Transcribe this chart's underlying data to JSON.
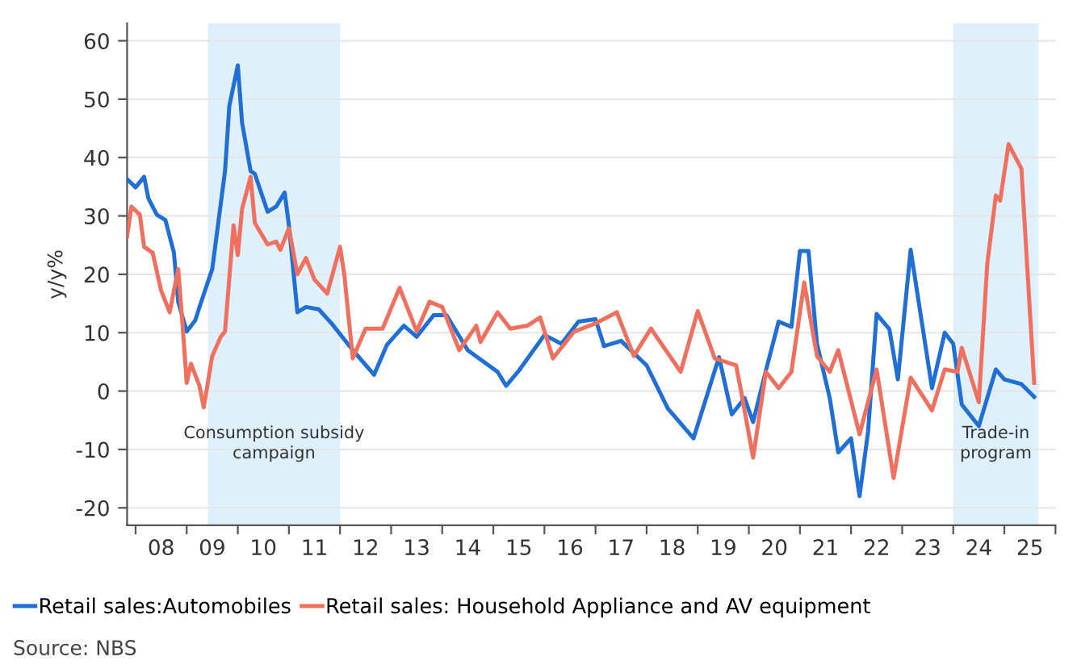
{
  "chart_data": {
    "type": "line",
    "ylabel": "y/y%",
    "xlim": [
      "2007-11",
      "2026-01"
    ],
    "ylim": [
      -23,
      63
    ],
    "yticks": [
      -20,
      -10,
      0,
      10,
      20,
      30,
      40,
      50,
      60
    ],
    "xticks": [
      {
        "value": "2008",
        "label": null
      },
      {
        "value": "2009",
        "label": null
      },
      {
        "value": "2010",
        "label": null
      },
      {
        "value": "2011",
        "label": null
      },
      {
        "value": "2012",
        "label": null
      },
      {
        "value": "2013",
        "label": null
      },
      {
        "value": "2014",
        "label": null
      },
      {
        "value": "2015",
        "label": null
      },
      {
        "value": "2016",
        "label": null
      },
      {
        "value": "2017",
        "label": null
      },
      {
        "value": "2018",
        "label": null
      },
      {
        "value": "2019",
        "label": null
      },
      {
        "value": "2020",
        "label": null
      },
      {
        "value": "2021",
        "label": null
      },
      {
        "value": "2022",
        "label": null
      },
      {
        "value": "2023",
        "label": null
      },
      {
        "value": "2024",
        "label": null
      },
      {
        "value": "2025",
        "label": null
      },
      {
        "value": "2026",
        "label": null
      },
      {
        "value": "2008-07",
        "label": "08"
      },
      {
        "value": "2009-07",
        "label": "09"
      },
      {
        "value": "2010-07",
        "label": "10"
      },
      {
        "value": "2011-07",
        "label": "11"
      },
      {
        "value": "2012-07",
        "label": "12"
      },
      {
        "value": "2013-07",
        "label": "13"
      },
      {
        "value": "2014-07",
        "label": "14"
      },
      {
        "value": "2015-07",
        "label": "15"
      },
      {
        "value": "2016-07",
        "label": "16"
      },
      {
        "value": "2017-07",
        "label": "17"
      },
      {
        "value": "2018-07",
        "label": "18"
      },
      {
        "value": "2019-07",
        "label": "19"
      },
      {
        "value": "2020-07",
        "label": "20"
      },
      {
        "value": "2021-07",
        "label": "21"
      },
      {
        "value": "2022-07",
        "label": "22"
      },
      {
        "value": "2023-07",
        "label": "23"
      },
      {
        "value": "2024-07",
        "label": "24"
      },
      {
        "value": "2025-07",
        "label": "25"
      }
    ],
    "grid": "y",
    "legend": "bottom",
    "line_style": "solid",
    "marker": "none",
    "bands": [
      {
        "axis": "x",
        "from": "2009-06",
        "to": "2012-01",
        "label": "Consumption subsidy\ncampaign",
        "color": "#dff0fa"
      },
      {
        "axis": "x",
        "from": "2024-01",
        "to": "2025-09",
        "label": "Trade-in\nprogram",
        "color": "#dff0fa"
      }
    ],
    "series": [
      {
        "name": "Retail sales:Automobiles",
        "color": "#1f6fd6",
        "x": [
          "2007-11",
          "2008-01",
          "2008-03",
          "2008-04",
          "2008-06",
          "2008-08",
          "2008-10",
          "2008-11",
          "2009-01",
          "2009-03",
          "2009-04",
          "2009-07",
          "2009-10",
          "2009-11",
          "2010-01",
          "2010-02",
          "2010-04",
          "2010-05",
          "2010-08",
          "2010-10",
          "2010-12",
          "2011-01",
          "2011-03",
          "2011-05",
          "2011-08",
          "2011-11",
          "2012-04",
          "2012-09",
          "2012-12",
          "2013-04",
          "2013-07",
          "2013-11",
          "2014-02",
          "2014-07",
          "2015-02",
          "2015-04",
          "2015-07",
          "2016-01",
          "2016-05",
          "2016-09",
          "2017-01",
          "2017-03",
          "2017-07",
          "2018-01",
          "2018-06",
          "2018-12",
          "2019-06",
          "2019-09",
          "2019-12",
          "2020-02",
          "2020-05",
          "2020-08",
          "2020-11",
          "2021-01",
          "2021-03",
          "2021-05",
          "2021-08",
          "2021-10",
          "2022-01",
          "2022-03",
          "2022-05",
          "2022-07",
          "2022-10",
          "2022-12",
          "2023-03",
          "2023-06",
          "2023-08",
          "2023-11",
          "2024-01",
          "2024-03",
          "2024-07",
          "2024-11",
          "2025-01",
          "2025-05",
          "2025-08"
        ],
        "values": [
          36.3,
          34.9,
          36.7,
          33,
          30.2,
          29.3,
          23.7,
          15.3,
          10.2,
          12.1,
          14.4,
          20.9,
          37.7,
          48.8,
          55.8,
          46,
          37.7,
          37.2,
          30.7,
          31.6,
          34,
          28.4,
          13.5,
          14.4,
          14,
          11.6,
          7,
          2.8,
          7.9,
          11.2,
          9.3,
          13,
          13,
          7,
          3.3,
          0.9,
          3.5,
          9.6,
          8.1,
          11.9,
          12.3,
          7.7,
          8.6,
          4.4,
          -3,
          -8.1,
          5.8,
          -4,
          -1.2,
          -5.3,
          3.5,
          11.9,
          11,
          24,
          24,
          8.1,
          -1.2,
          -10.5,
          -8.1,
          -18,
          -6.9,
          13.2,
          10.6,
          2,
          24.2,
          10,
          0.5,
          10,
          8.1,
          -2.3,
          -6,
          3.7,
          2,
          1.2,
          -1
        ]
      },
      {
        "name": "Retail sales: Household Appliance and AV equipment",
        "color": "#f07060",
        "x": [
          "2007-11",
          "2007-12",
          "2008-02",
          "2008-03",
          "2008-05",
          "2008-07",
          "2008-09",
          "2008-11",
          "2008-12",
          "2009-01",
          "2009-02",
          "2009-04",
          "2009-05",
          "2009-07",
          "2009-09",
          "2009-10",
          "2009-12",
          "2010-01",
          "2010-02",
          "2010-04",
          "2010-05",
          "2010-08",
          "2010-10",
          "2010-11",
          "2011-01",
          "2011-03",
          "2011-05",
          "2011-07",
          "2011-10",
          "2012-01",
          "2012-02",
          "2012-04",
          "2012-07",
          "2012-11",
          "2013-03",
          "2013-07",
          "2013-10",
          "2014-01",
          "2014-05",
          "2014-09",
          "2014-10",
          "2015-02",
          "2015-05",
          "2015-09",
          "2015-12",
          "2016-03",
          "2016-08",
          "2017-01",
          "2017-06",
          "2017-10",
          "2018-02",
          "2018-09",
          "2019-01",
          "2019-05",
          "2019-10",
          "2019-11",
          "2020-02",
          "2020-05",
          "2020-08",
          "2020-11",
          "2021-02",
          "2021-05",
          "2021-08",
          "2021-10",
          "2022-03",
          "2022-07",
          "2022-11",
          "2023-03",
          "2023-08",
          "2023-11",
          "2024-02",
          "2024-03",
          "2024-07",
          "2024-09",
          "2024-11",
          "2024-12",
          "2025-02",
          "2025-05",
          "2025-08"
        ],
        "values": [
          26.5,
          31.6,
          30.2,
          24.7,
          23.7,
          17.2,
          13.5,
          20.9,
          11.6,
          1.4,
          4.7,
          0.9,
          -2.8,
          6,
          9.3,
          10.2,
          28.4,
          23.3,
          31.2,
          36.7,
          28.8,
          25.1,
          25.6,
          24.2,
          27.9,
          20,
          22.8,
          19.1,
          16.7,
          24.7,
          20,
          5.6,
          10.7,
          10.7,
          17.7,
          10.2,
          15.3,
          14.4,
          7,
          11.2,
          8.4,
          13.5,
          10.7,
          11.2,
          12.6,
          5.6,
          10.2,
          11.6,
          13.5,
          6,
          10.7,
          3.3,
          13.7,
          5.6,
          4.4,
          0.7,
          -11.4,
          3.3,
          0.5,
          3.3,
          18.6,
          6,
          3.3,
          7,
          -7.4,
          3.7,
          -14.9,
          2.3,
          -3.3,
          3.7,
          3.3,
          7.4,
          -1.9,
          21.9,
          33.5,
          32.6,
          42.3,
          38.1,
          1.4
        ]
      }
    ],
    "annotations": [
      "Source: NBS"
    ]
  }
}
